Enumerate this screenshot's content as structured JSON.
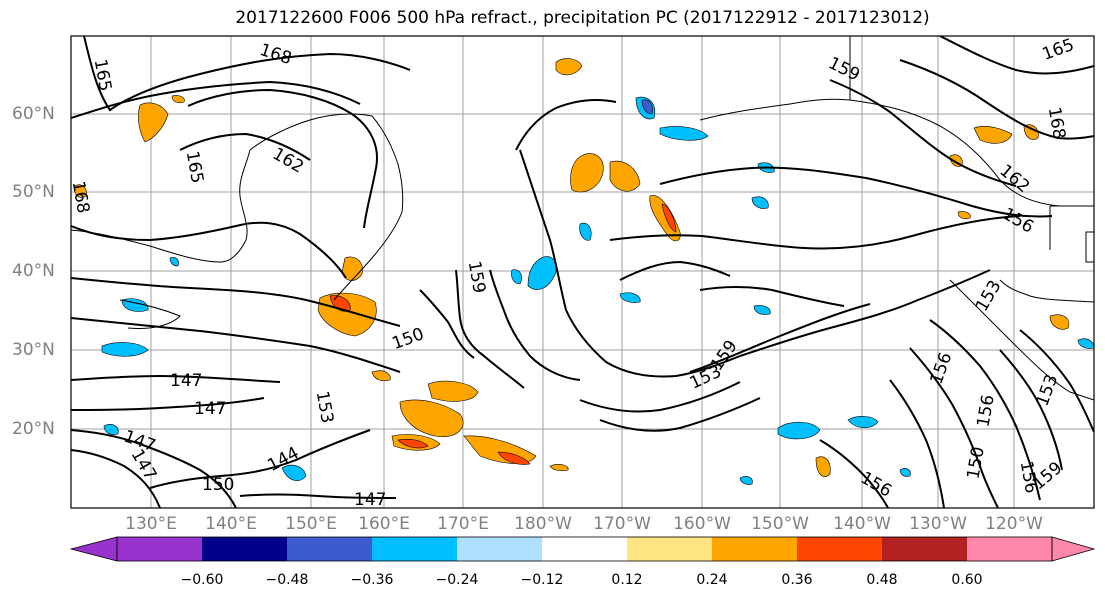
{
  "title": "2017122600 F006 500 hPa refract., precipitation PC (2017122912 - 2017123012)",
  "map": {
    "lat_labels": [
      "60°N",
      "50°N",
      "40°N",
      "30°N",
      "20°N"
    ],
    "lon_labels": [
      "130°E",
      "140°E",
      "150°E",
      "160°E",
      "170°E",
      "180°W",
      "170°W",
      "160°W",
      "150°W",
      "140°W",
      "130°W",
      "120°W"
    ],
    "contour_labels": [
      "165",
      "168",
      "162",
      "165",
      "168",
      "159",
      "159",
      "153",
      "159",
      "147",
      "147",
      "150",
      "144",
      "147",
      "150",
      "156",
      "162",
      "156",
      "153",
      "156",
      "156",
      "150",
      "156",
      "153",
      "168",
      "165",
      "153",
      "159",
      "147",
      "147"
    ],
    "colors": {
      "contour": "#000000",
      "grid": "#a0a0a0",
      "coast": "#000000"
    }
  },
  "colorbar": {
    "ticks": [
      "−0.60",
      "−0.48",
      "−0.36",
      "−0.24",
      "−0.12",
      "0.12",
      "0.24",
      "0.36",
      "0.48",
      "0.60"
    ],
    "colors": [
      "#9932cc",
      "#00008b",
      "#3e5bcd",
      "#00bfff",
      "#b0e0ff",
      "#ffffff",
      "#ffe680",
      "#ffa500",
      "#ff4500",
      "#b22222",
      "#ff88aa"
    ]
  }
}
